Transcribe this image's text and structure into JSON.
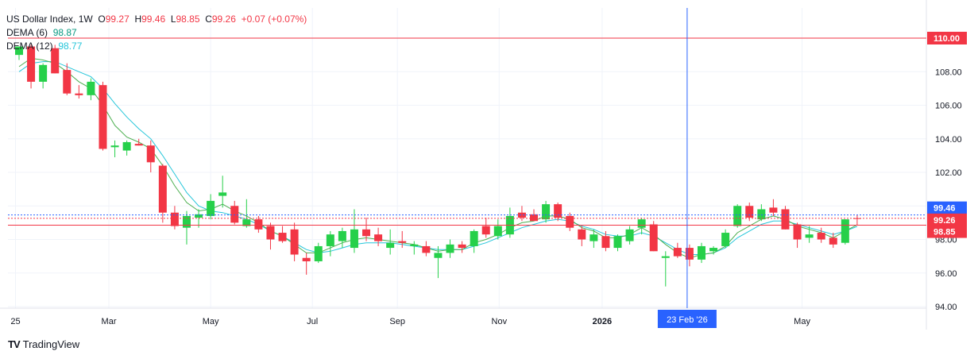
{
  "legend": {
    "symbol": "US Dollar Index",
    "interval": "1W",
    "open_label": "O",
    "open": "99.27",
    "high_label": "H",
    "high": "99.46",
    "low_label": "L",
    "low": "98.85",
    "close_label": "C",
    "close": "99.26",
    "change": "+0.07 (+0.07%)",
    "dema6_label": "DEMA (6)",
    "dema6_value": "98.87",
    "dema12_label": "DEMA (12)",
    "dema12_value": "98.77"
  },
  "brand": {
    "name": "TradingView",
    "logo": "TV"
  },
  "colors": {
    "up": "#26d04a",
    "down": "#f23645",
    "dema6": "#4caf50",
    "dema12": "#26c6da",
    "crosshair": "#2962ff",
    "grid": "#f0f3fa",
    "axis_text": "#131722"
  },
  "chart_data": {
    "type": "candlestick",
    "title": "US Dollar Index, 1W",
    "ylim": [
      94,
      111
    ],
    "y_ticks": [
      "110.00",
      "108.00",
      "106.00",
      "104.00",
      "102.00",
      "100.00",
      "98.00",
      "96.00",
      "94.00"
    ],
    "x_tick_labels": [
      {
        "label": "25",
        "week": -0.3
      },
      {
        "label": "Mar",
        "week": 7.5
      },
      {
        "label": "May",
        "week": 16
      },
      {
        "label": "Jul",
        "week": 24.5
      },
      {
        "label": "Sep",
        "week": 31.6
      },
      {
        "label": "Nov",
        "week": 40.1
      },
      {
        "label": "2026",
        "week": 48.7
      },
      {
        "label": "May",
        "week": 65.4
      }
    ],
    "crosshair": {
      "week": 55.8,
      "x_label": "23 Feb '26"
    },
    "price_lines": [
      {
        "label": "110.00",
        "value": 110.0,
        "color": "#f23645"
      },
      {
        "label": "99.46",
        "value": 99.46,
        "color": "#2962ff"
      },
      {
        "label": "99.26",
        "value": 99.26,
        "color": "#f23645"
      },
      {
        "label": "98.85",
        "value": 98.85,
        "color": "#f23645"
      }
    ],
    "ohlc": [
      [
        109.0,
        109.5,
        108.7,
        109.5
      ],
      [
        109.5,
        109.6,
        107.0,
        107.4
      ],
      [
        107.4,
        108.5,
        107.0,
        108.4
      ],
      [
        109.4,
        109.6,
        107.9,
        107.9
      ],
      [
        108.1,
        108.5,
        106.6,
        106.7
      ],
      [
        106.7,
        107.2,
        106.4,
        106.6
      ],
      [
        106.6,
        107.6,
        106.3,
        107.4
      ],
      [
        107.2,
        107.4,
        103.3,
        103.4
      ],
      [
        103.5,
        103.9,
        102.9,
        103.6
      ],
      [
        103.3,
        103.9,
        103.0,
        103.8
      ],
      [
        103.7,
        104.0,
        103.6,
        103.6
      ],
      [
        103.6,
        103.9,
        102.0,
        102.6
      ],
      [
        102.4,
        102.5,
        99.0,
        99.6
      ],
      [
        99.6,
        100.0,
        98.6,
        98.8
      ],
      [
        98.7,
        99.7,
        97.7,
        99.4
      ],
      [
        99.3,
        99.8,
        98.7,
        99.5
      ],
      [
        99.4,
        100.7,
        99.2,
        100.3
      ],
      [
        100.6,
        101.8,
        99.9,
        100.8
      ],
      [
        100.0,
        100.3,
        98.9,
        99.0
      ],
      [
        98.8,
        100.4,
        98.7,
        99.2
      ],
      [
        99.2,
        99.4,
        98.4,
        98.6
      ],
      [
        98.8,
        99.0,
        97.4,
        98.0
      ],
      [
        98.4,
        98.8,
        97.8,
        97.9
      ],
      [
        98.6,
        99.0,
        96.7,
        97.1
      ],
      [
        96.9,
        97.2,
        95.9,
        96.7
      ],
      [
        96.7,
        97.8,
        96.6,
        97.6
      ],
      [
        97.6,
        98.5,
        97.0,
        98.3
      ],
      [
        97.9,
        98.7,
        97.5,
        98.5
      ],
      [
        97.5,
        99.8,
        97.2,
        98.6
      ],
      [
        98.6,
        99.3,
        97.9,
        98.2
      ],
      [
        98.3,
        98.7,
        97.6,
        97.9
      ],
      [
        97.5,
        98.6,
        97.1,
        97.8
      ],
      [
        97.9,
        98.5,
        97.5,
        97.8
      ],
      [
        97.6,
        97.9,
        97.1,
        97.7
      ],
      [
        97.6,
        97.9,
        97.0,
        97.2
      ],
      [
        96.9,
        97.6,
        95.7,
        97.2
      ],
      [
        97.2,
        98.0,
        96.9,
        97.7
      ],
      [
        97.7,
        97.9,
        97.2,
        97.5
      ],
      [
        97.6,
        98.6,
        97.2,
        98.5
      ],
      [
        98.8,
        99.3,
        98.1,
        98.3
      ],
      [
        98.2,
        99.2,
        98.0,
        98.8
      ],
      [
        98.3,
        99.9,
        98.1,
        99.4
      ],
      [
        99.6,
        100.0,
        99.1,
        99.3
      ],
      [
        99.5,
        99.8,
        99.1,
        99.1
      ],
      [
        99.2,
        100.3,
        99.0,
        100.1
      ],
      [
        100.1,
        100.2,
        99.1,
        99.3
      ],
      [
        99.4,
        99.6,
        98.5,
        98.7
      ],
      [
        98.6,
        98.8,
        97.6,
        98.0
      ],
      [
        97.9,
        98.6,
        97.5,
        98.3
      ],
      [
        98.2,
        98.5,
        97.3,
        97.5
      ],
      [
        97.5,
        98.3,
        97.3,
        98.2
      ],
      [
        97.9,
        98.8,
        97.7,
        98.6
      ],
      [
        98.7,
        99.3,
        98.3,
        99.2
      ],
      [
        98.9,
        99.1,
        97.3,
        97.3
      ],
      [
        96.9,
        97.3,
        95.2,
        97.0
      ],
      [
        97.5,
        97.8,
        96.9,
        97.0
      ],
      [
        97.5,
        97.7,
        96.4,
        96.8
      ],
      [
        96.8,
        97.8,
        96.6,
        97.6
      ],
      [
        97.3,
        97.6,
        97.1,
        97.5
      ],
      [
        97.6,
        98.6,
        97.5,
        98.4
      ],
      [
        98.8,
        100.1,
        98.7,
        100.0
      ],
      [
        100.0,
        100.2,
        99.1,
        99.3
      ],
      [
        99.2,
        100.1,
        99.1,
        99.8
      ],
      [
        99.9,
        100.4,
        99.4,
        99.6
      ],
      [
        99.8,
        100.0,
        98.6,
        98.6
      ],
      [
        98.9,
        99.0,
        97.5,
        98.0
      ],
      [
        98.1,
        98.8,
        97.8,
        98.3
      ],
      [
        98.4,
        98.7,
        97.8,
        98.0
      ],
      [
        98.1,
        98.4,
        97.5,
        97.7
      ],
      [
        97.8,
        99.2,
        97.7,
        99.2
      ],
      [
        99.27,
        99.46,
        98.85,
        99.26
      ]
    ],
    "dema_fast": [
      108.3,
      108.8,
      108.7,
      108.5,
      108.0,
      107.4,
      107.0,
      106.0,
      104.8,
      104.1,
      103.8,
      103.4,
      102.4,
      101.2,
      100.2,
      99.7,
      99.8,
      100.1,
      99.7,
      99.4,
      99.0,
      98.5,
      98.2,
      97.7,
      97.2,
      97.2,
      97.5,
      97.8,
      98.0,
      98.1,
      98.0,
      97.9,
      97.8,
      97.7,
      97.5,
      97.3,
      97.4,
      97.4,
      97.8,
      98.0,
      98.3,
      98.7,
      99.0,
      99.1,
      99.4,
      99.4,
      99.2,
      98.7,
      98.5,
      98.1,
      98.1,
      98.3,
      98.7,
      98.3,
      97.7,
      97.2,
      96.9,
      97.1,
      97.2,
      97.6,
      98.4,
      98.8,
      99.2,
      99.4,
      99.2,
      98.8,
      98.6,
      98.4,
      98.1,
      98.5,
      98.87
    ],
    "dema_slow": [
      108.0,
      108.5,
      108.6,
      108.6,
      108.3,
      108.0,
      107.7,
      107.0,
      106.1,
      105.3,
      104.6,
      104.0,
      103.0,
      101.9,
      100.8,
      100.0,
      99.7,
      99.6,
      99.4,
      99.2,
      98.9,
      98.5,
      98.2,
      97.8,
      97.4,
      97.2,
      97.3,
      97.5,
      97.7,
      97.8,
      97.8,
      97.8,
      97.7,
      97.6,
      97.5,
      97.4,
      97.4,
      97.4,
      97.6,
      97.8,
      98.1,
      98.4,
      98.7,
      98.9,
      99.1,
      99.2,
      99.1,
      98.8,
      98.6,
      98.3,
      98.2,
      98.2,
      98.4,
      98.2,
      97.8,
      97.4,
      97.1,
      97.1,
      97.2,
      97.5,
      98.1,
      98.5,
      98.9,
      99.1,
      99.1,
      98.9,
      98.7,
      98.5,
      98.3,
      98.5,
      98.77
    ]
  }
}
